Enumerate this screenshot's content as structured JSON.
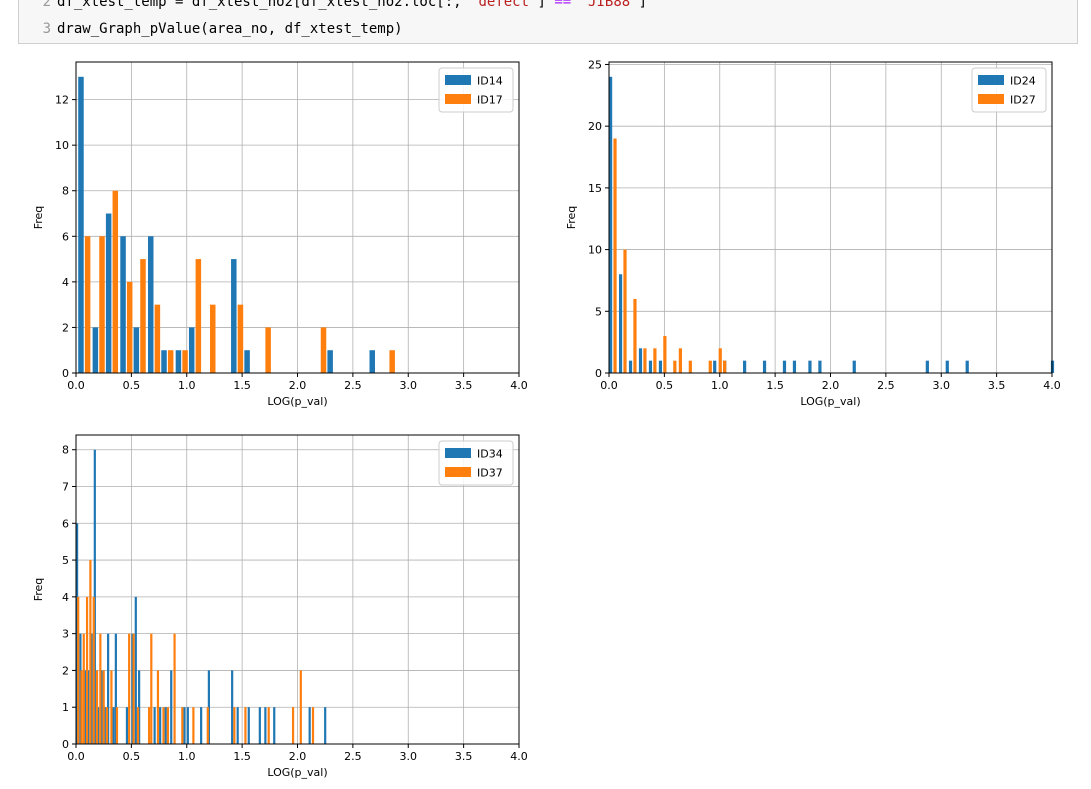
{
  "notebook": {
    "code_lines": [
      {
        "no": "2",
        "pre": "df_xtest_temp = df_xtest_no2[df_xtest_no2.loc[:, ",
        "str1": "'defect'",
        "mid": "] ",
        "op": "==",
        "post": " ",
        "str2": "'JIB88'",
        "end": "]"
      },
      {
        "no": "3",
        "pre": "draw_Graph_pValue(area_no, df_xtest_temp)",
        "str1": "",
        "mid": "",
        "op": "",
        "post": "",
        "str2": "",
        "end": ""
      }
    ]
  },
  "colors": {
    "series1": "#1f77b4",
    "series2": "#ff7f0e"
  },
  "chart_data": [
    {
      "type": "bar",
      "xlabel": "LOG(p_val)",
      "ylabel": "Freq",
      "xlim": [
        0,
        4.0
      ],
      "ylim": [
        0,
        13.65
      ],
      "xticks": [
        "0.0",
        "0.5",
        "1.0",
        "1.5",
        "2.0",
        "2.5",
        "3.0",
        "3.5",
        "4.0"
      ],
      "xtick_values": [
        0,
        0.5,
        1.0,
        1.5,
        2.0,
        2.5,
        3.0,
        3.5,
        4.0
      ],
      "yticks": [
        "0",
        "2",
        "4",
        "6",
        "8",
        "10",
        "12"
      ],
      "ytick_values": [
        0,
        2,
        4,
        6,
        8,
        10,
        12
      ],
      "grid": true,
      "legend": "top-right",
      "series": [
        {
          "name": "ID14",
          "points": [
            [
              0.02,
              13
            ],
            [
              0.15,
              2
            ],
            [
              0.27,
              7
            ],
            [
              0.4,
              6
            ],
            [
              0.52,
              2
            ],
            [
              0.65,
              6
            ],
            [
              0.77,
              1
            ],
            [
              0.9,
              1
            ],
            [
              1.02,
              2
            ],
            [
              1.4,
              5
            ],
            [
              1.52,
              1
            ],
            [
              2.27,
              1
            ],
            [
              2.65,
              1
            ]
          ]
        },
        {
          "name": "ID17",
          "points": [
            [
              0.08,
              6
            ],
            [
              0.21,
              6
            ],
            [
              0.33,
              8
            ],
            [
              0.46,
              4
            ],
            [
              0.58,
              5
            ],
            [
              0.71,
              3
            ],
            [
              0.83,
              1
            ],
            [
              0.96,
              1
            ],
            [
              1.08,
              5
            ],
            [
              1.21,
              3
            ],
            [
              1.46,
              3
            ],
            [
              1.71,
              2
            ],
            [
              2.21,
              2
            ],
            [
              2.83,
              1
            ]
          ]
        }
      ]
    },
    {
      "type": "bar",
      "xlabel": "LOG(p_val)",
      "ylabel": "Freq",
      "xlim": [
        0,
        4.0
      ],
      "ylim": [
        0,
        25.2
      ],
      "xticks": [
        "0.0",
        "0.5",
        "1.0",
        "1.5",
        "2.0",
        "2.5",
        "3.0",
        "3.5",
        "4.0"
      ],
      "xtick_values": [
        0,
        0.5,
        1.0,
        1.5,
        2.0,
        2.5,
        3.0,
        3.5,
        4.0
      ],
      "yticks": [
        "0",
        "5",
        "10",
        "15",
        "20",
        "25"
      ],
      "ytick_values": [
        0,
        5,
        10,
        15,
        20,
        25
      ],
      "grid": true,
      "legend": "top-right",
      "series": [
        {
          "name": "ID24",
          "points": [
            [
              0.0,
              24
            ],
            [
              0.09,
              8
            ],
            [
              0.18,
              1
            ],
            [
              0.27,
              2
            ],
            [
              0.36,
              1
            ],
            [
              0.45,
              1
            ],
            [
              0.94,
              1
            ],
            [
              1.03,
              1
            ],
            [
              1.21,
              1
            ],
            [
              1.39,
              1
            ],
            [
              1.57,
              1
            ],
            [
              1.66,
              1
            ],
            [
              1.8,
              1
            ],
            [
              1.89,
              1
            ],
            [
              2.2,
              1
            ],
            [
              2.86,
              1
            ],
            [
              3.04,
              1
            ],
            [
              3.22,
              1
            ],
            [
              3.99,
              1
            ]
          ]
        },
        {
          "name": "ID27",
          "points": [
            [
              0.04,
              19
            ],
            [
              0.13,
              10
            ],
            [
              0.22,
              6
            ],
            [
              0.31,
              2
            ],
            [
              0.4,
              2
            ],
            [
              0.49,
              3
            ],
            [
              0.58,
              1
            ],
            [
              0.63,
              2
            ],
            [
              0.72,
              1
            ],
            [
              0.9,
              1
            ],
            [
              0.99,
              2
            ],
            [
              1.03,
              1
            ]
          ]
        }
      ]
    },
    {
      "type": "bar",
      "xlabel": "LOG(p_val)",
      "ylabel": "Freq",
      "xlim": [
        0,
        4.0
      ],
      "ylim": [
        0,
        8.4
      ],
      "xticks": [
        "0.0",
        "0.5",
        "1.0",
        "1.5",
        "2.0",
        "2.5",
        "3.0",
        "3.5",
        "4.0"
      ],
      "xtick_values": [
        0,
        0.5,
        1.0,
        1.5,
        2.0,
        2.5,
        3.0,
        3.5,
        4.0
      ],
      "yticks": [
        "0",
        "1",
        "2",
        "3",
        "4",
        "5",
        "6",
        "7",
        "8"
      ],
      "ytick_values": [
        0,
        1,
        2,
        3,
        4,
        5,
        6,
        7,
        8
      ],
      "grid": true,
      "legend": "top-right",
      "series": [
        {
          "name": "ID34",
          "points": [
            [
              0.0,
              6
            ],
            [
              0.03,
              3
            ],
            [
              0.07,
              2
            ],
            [
              0.1,
              2
            ],
            [
              0.13,
              3
            ],
            [
              0.16,
              8
            ],
            [
              0.19,
              1
            ],
            [
              0.22,
              2
            ],
            [
              0.25,
              1
            ],
            [
              0.28,
              3
            ],
            [
              0.33,
              1
            ],
            [
              0.35,
              3
            ],
            [
              0.45,
              1
            ],
            [
              0.5,
              3
            ],
            [
              0.53,
              4
            ],
            [
              0.56,
              2
            ],
            [
              0.7,
              1
            ],
            [
              0.75,
              1
            ],
            [
              0.8,
              1
            ],
            [
              0.85,
              2
            ],
            [
              0.97,
              1
            ],
            [
              1.0,
              1
            ],
            [
              1.12,
              1
            ],
            [
              1.19,
              2
            ],
            [
              1.4,
              2
            ],
            [
              1.45,
              1
            ],
            [
              1.55,
              1
            ],
            [
              1.65,
              1
            ],
            [
              1.7,
              1
            ],
            [
              1.78,
              1
            ],
            [
              2.1,
              1
            ],
            [
              2.24,
              1
            ]
          ]
        },
        {
          "name": "ID37",
          "points": [
            [
              0.01,
              4
            ],
            [
              0.04,
              2
            ],
            [
              0.06,
              3
            ],
            [
              0.09,
              4
            ],
            [
              0.12,
              5
            ],
            [
              0.15,
              4
            ],
            [
              0.18,
              2
            ],
            [
              0.21,
              3
            ],
            [
              0.24,
              2
            ],
            [
              0.27,
              1
            ],
            [
              0.31,
              2
            ],
            [
              0.36,
              1
            ],
            [
              0.47,
              3
            ],
            [
              0.51,
              3
            ],
            [
              0.55,
              1
            ],
            [
              0.65,
              1
            ],
            [
              0.67,
              3
            ],
            [
              0.73,
              2
            ],
            [
              0.78,
              1
            ],
            [
              0.82,
              1
            ],
            [
              0.88,
              3
            ],
            [
              0.95,
              1
            ],
            [
              1.05,
              1
            ],
            [
              1.18,
              1
            ],
            [
              1.42,
              1
            ],
            [
              1.52,
              1
            ],
            [
              1.73,
              1
            ],
            [
              1.95,
              1
            ],
            [
              2.02,
              2
            ],
            [
              2.13,
              1
            ]
          ]
        }
      ]
    }
  ]
}
